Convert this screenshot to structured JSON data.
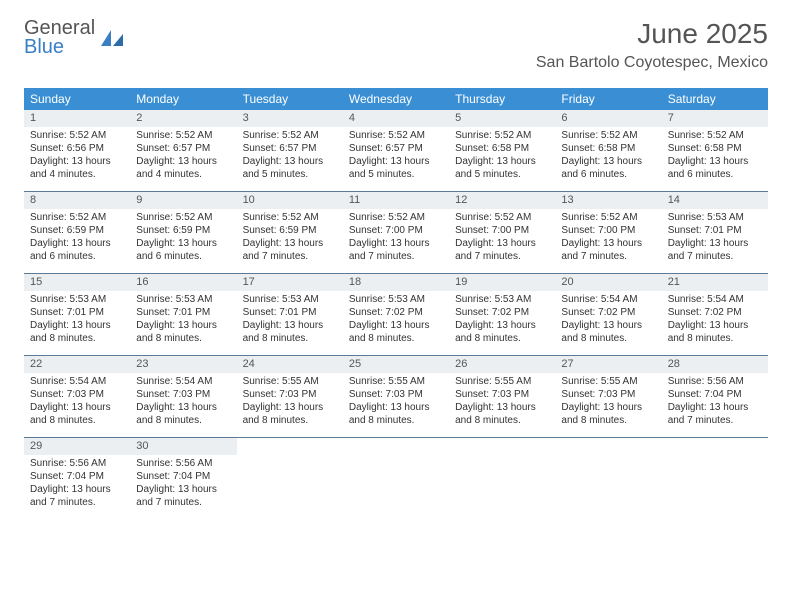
{
  "brand": {
    "word1": "General",
    "word2": "Blue"
  },
  "title": {
    "month": "June 2025",
    "location": "San Bartolo Coyotespec, Mexico"
  },
  "colors": {
    "header_bg": "#3a8fd4",
    "header_text": "#ffffff",
    "daynum_bg": "#eceff1",
    "row_divider": "#5a7a9a",
    "text": "#333333",
    "brand_blue": "#3a7fc4",
    "brand_gray": "#555555",
    "page_bg": "#ffffff"
  },
  "weekdays": [
    "Sunday",
    "Monday",
    "Tuesday",
    "Wednesday",
    "Thursday",
    "Friday",
    "Saturday"
  ],
  "weeks": [
    [
      {
        "n": "1",
        "sr": "Sunrise: 5:52 AM",
        "ss": "Sunset: 6:56 PM",
        "d1": "Daylight: 13 hours",
        "d2": "and 4 minutes."
      },
      {
        "n": "2",
        "sr": "Sunrise: 5:52 AM",
        "ss": "Sunset: 6:57 PM",
        "d1": "Daylight: 13 hours",
        "d2": "and 4 minutes."
      },
      {
        "n": "3",
        "sr": "Sunrise: 5:52 AM",
        "ss": "Sunset: 6:57 PM",
        "d1": "Daylight: 13 hours",
        "d2": "and 5 minutes."
      },
      {
        "n": "4",
        "sr": "Sunrise: 5:52 AM",
        "ss": "Sunset: 6:57 PM",
        "d1": "Daylight: 13 hours",
        "d2": "and 5 minutes."
      },
      {
        "n": "5",
        "sr": "Sunrise: 5:52 AM",
        "ss": "Sunset: 6:58 PM",
        "d1": "Daylight: 13 hours",
        "d2": "and 5 minutes."
      },
      {
        "n": "6",
        "sr": "Sunrise: 5:52 AM",
        "ss": "Sunset: 6:58 PM",
        "d1": "Daylight: 13 hours",
        "d2": "and 6 minutes."
      },
      {
        "n": "7",
        "sr": "Sunrise: 5:52 AM",
        "ss": "Sunset: 6:58 PM",
        "d1": "Daylight: 13 hours",
        "d2": "and 6 minutes."
      }
    ],
    [
      {
        "n": "8",
        "sr": "Sunrise: 5:52 AM",
        "ss": "Sunset: 6:59 PM",
        "d1": "Daylight: 13 hours",
        "d2": "and 6 minutes."
      },
      {
        "n": "9",
        "sr": "Sunrise: 5:52 AM",
        "ss": "Sunset: 6:59 PM",
        "d1": "Daylight: 13 hours",
        "d2": "and 6 minutes."
      },
      {
        "n": "10",
        "sr": "Sunrise: 5:52 AM",
        "ss": "Sunset: 6:59 PM",
        "d1": "Daylight: 13 hours",
        "d2": "and 7 minutes."
      },
      {
        "n": "11",
        "sr": "Sunrise: 5:52 AM",
        "ss": "Sunset: 7:00 PM",
        "d1": "Daylight: 13 hours",
        "d2": "and 7 minutes."
      },
      {
        "n": "12",
        "sr": "Sunrise: 5:52 AM",
        "ss": "Sunset: 7:00 PM",
        "d1": "Daylight: 13 hours",
        "d2": "and 7 minutes."
      },
      {
        "n": "13",
        "sr": "Sunrise: 5:52 AM",
        "ss": "Sunset: 7:00 PM",
        "d1": "Daylight: 13 hours",
        "d2": "and 7 minutes."
      },
      {
        "n": "14",
        "sr": "Sunrise: 5:53 AM",
        "ss": "Sunset: 7:01 PM",
        "d1": "Daylight: 13 hours",
        "d2": "and 7 minutes."
      }
    ],
    [
      {
        "n": "15",
        "sr": "Sunrise: 5:53 AM",
        "ss": "Sunset: 7:01 PM",
        "d1": "Daylight: 13 hours",
        "d2": "and 8 minutes."
      },
      {
        "n": "16",
        "sr": "Sunrise: 5:53 AM",
        "ss": "Sunset: 7:01 PM",
        "d1": "Daylight: 13 hours",
        "d2": "and 8 minutes."
      },
      {
        "n": "17",
        "sr": "Sunrise: 5:53 AM",
        "ss": "Sunset: 7:01 PM",
        "d1": "Daylight: 13 hours",
        "d2": "and 8 minutes."
      },
      {
        "n": "18",
        "sr": "Sunrise: 5:53 AM",
        "ss": "Sunset: 7:02 PM",
        "d1": "Daylight: 13 hours",
        "d2": "and 8 minutes."
      },
      {
        "n": "19",
        "sr": "Sunrise: 5:53 AM",
        "ss": "Sunset: 7:02 PM",
        "d1": "Daylight: 13 hours",
        "d2": "and 8 minutes."
      },
      {
        "n": "20",
        "sr": "Sunrise: 5:54 AM",
        "ss": "Sunset: 7:02 PM",
        "d1": "Daylight: 13 hours",
        "d2": "and 8 minutes."
      },
      {
        "n": "21",
        "sr": "Sunrise: 5:54 AM",
        "ss": "Sunset: 7:02 PM",
        "d1": "Daylight: 13 hours",
        "d2": "and 8 minutes."
      }
    ],
    [
      {
        "n": "22",
        "sr": "Sunrise: 5:54 AM",
        "ss": "Sunset: 7:03 PM",
        "d1": "Daylight: 13 hours",
        "d2": "and 8 minutes."
      },
      {
        "n": "23",
        "sr": "Sunrise: 5:54 AM",
        "ss": "Sunset: 7:03 PM",
        "d1": "Daylight: 13 hours",
        "d2": "and 8 minutes."
      },
      {
        "n": "24",
        "sr": "Sunrise: 5:55 AM",
        "ss": "Sunset: 7:03 PM",
        "d1": "Daylight: 13 hours",
        "d2": "and 8 minutes."
      },
      {
        "n": "25",
        "sr": "Sunrise: 5:55 AM",
        "ss": "Sunset: 7:03 PM",
        "d1": "Daylight: 13 hours",
        "d2": "and 8 minutes."
      },
      {
        "n": "26",
        "sr": "Sunrise: 5:55 AM",
        "ss": "Sunset: 7:03 PM",
        "d1": "Daylight: 13 hours",
        "d2": "and 8 minutes."
      },
      {
        "n": "27",
        "sr": "Sunrise: 5:55 AM",
        "ss": "Sunset: 7:03 PM",
        "d1": "Daylight: 13 hours",
        "d2": "and 8 minutes."
      },
      {
        "n": "28",
        "sr": "Sunrise: 5:56 AM",
        "ss": "Sunset: 7:04 PM",
        "d1": "Daylight: 13 hours",
        "d2": "and 7 minutes."
      }
    ],
    [
      {
        "n": "29",
        "sr": "Sunrise: 5:56 AM",
        "ss": "Sunset: 7:04 PM",
        "d1": "Daylight: 13 hours",
        "d2": "and 7 minutes."
      },
      {
        "n": "30",
        "sr": "Sunrise: 5:56 AM",
        "ss": "Sunset: 7:04 PM",
        "d1": "Daylight: 13 hours",
        "d2": "and 7 minutes."
      },
      null,
      null,
      null,
      null,
      null
    ]
  ]
}
